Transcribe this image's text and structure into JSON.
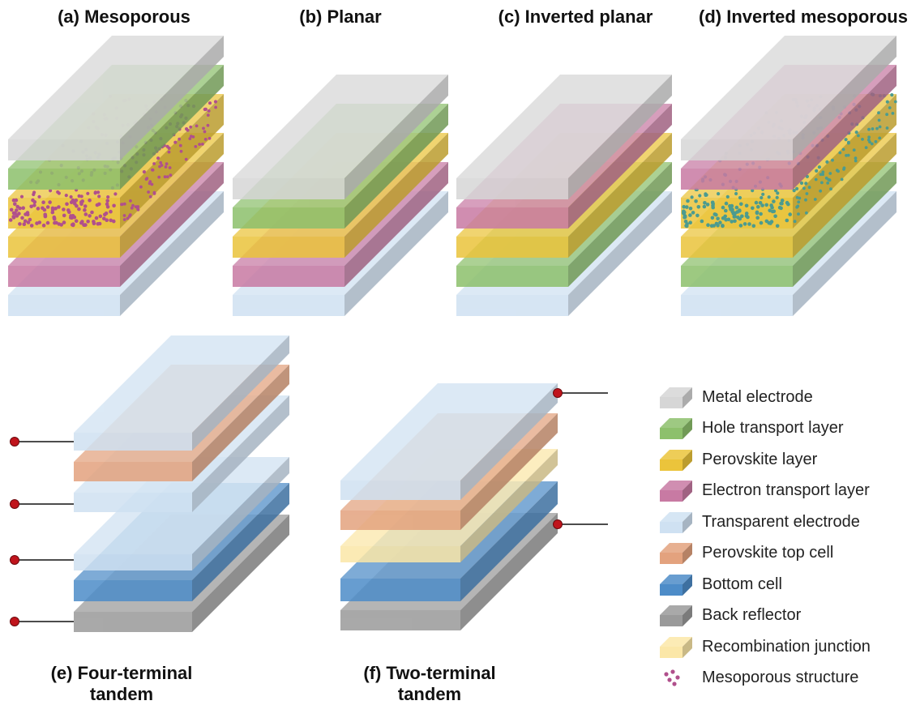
{
  "titles": {
    "a": "(a) Mesoporous",
    "b": "(b) Planar",
    "c": "(c) Inverted planar",
    "d": "(d) Inverted mesoporous",
    "e_line1": "(e) Four-terminal",
    "e_line2": "tandem",
    "f_line1": "(f) Two-terminal",
    "f_line2": "tandem"
  },
  "materials": {
    "metal": {
      "label": "Metal electrode",
      "color": "#d6d6d6"
    },
    "htl": {
      "label": "Hole transport layer",
      "color": "#8dc06c"
    },
    "pvk": {
      "label": "Perovskite layer",
      "color": "#ebc43b"
    },
    "etl": {
      "label": "Electron transport layer",
      "color": "#c87aa3"
    },
    "tce": {
      "label": "Transparent electrode",
      "color": "#cfe1f2"
    },
    "top": {
      "label": "Perovskite top cell",
      "color": "#e3a27e"
    },
    "bottom": {
      "label": "Bottom cell",
      "color": "#4d8cc8"
    },
    "back": {
      "label": "Back reflector",
      "color": "#9a9a9a"
    },
    "recomb": {
      "label": "Recombination junction",
      "color": "#fbe7a8"
    },
    "meso": {
      "label": "Mesoporous structure",
      "color": "#b0508c"
    }
  },
  "legend_order": [
    "metal",
    "htl",
    "pvk",
    "etl",
    "tce",
    "top",
    "bottom",
    "back",
    "recomb",
    "meso"
  ],
  "stacks": {
    "a": [
      "tce",
      "etl",
      "pvk",
      "pvk",
      "htl",
      "metal"
    ],
    "b": [
      "tce",
      "etl",
      "pvk",
      "htl",
      "metal"
    ],
    "c": [
      "tce",
      "htl",
      "pvk",
      "etl",
      "metal"
    ],
    "d": [
      "tce",
      "htl",
      "pvk",
      "pvk",
      "etl",
      "metal"
    ],
    "e": [
      "back",
      "bottom",
      "tce",
      "tce",
      "top",
      "tce"
    ],
    "f": [
      "back",
      "bottom",
      "recomb",
      "top",
      "tce"
    ]
  },
  "mesoporous_layers": {
    "a": 3,
    "d": 3
  },
  "mesoporous_dot_colors": {
    "a": "#b0508c",
    "d": "#4c9b8f"
  },
  "terminals": {
    "e": 4,
    "f": 2
  },
  "terminal_color": "#c0141c"
}
